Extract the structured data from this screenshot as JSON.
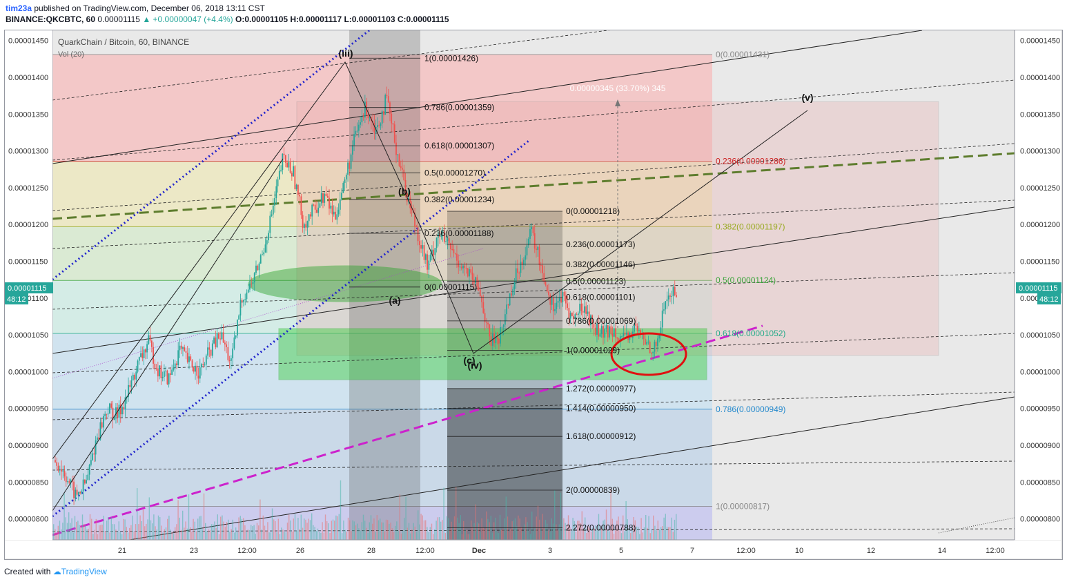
{
  "header": {
    "user": "tim23a",
    "published": " published on TradingView.com, December 06, 2018 13:11 CST",
    "symbol": "BINANCE:QKCBTC, 60",
    "price": "0.00001115",
    "change": "▲ +0.00000047 (+4.4%)",
    "ohlc": "O:0.00001105 H:0.00001117 L:0.00001103 C:0.00001115"
  },
  "legend": {
    "title": "QuarkChain / Bitcoin, 60, BINANCE",
    "volume": "Vol (20)"
  },
  "footer": {
    "prefix": "Created with",
    "brand": "TradingView"
  },
  "colors": {
    "up": "#26a69a",
    "down": "#ef5350",
    "bg": "#e9e9e9",
    "magenta": "#cc22cc",
    "blue": "#1f22cc",
    "olive": "#5e7d2e"
  },
  "chart_data": {
    "type": "candlestick",
    "interval": "60",
    "ylim": [
      7.75e-06,
      1.468e-05
    ],
    "y_ticks": [
      "0.00001450",
      "0.00001400",
      "0.00001350",
      "0.00001300",
      "0.00001250",
      "0.00001200",
      "0.00001150",
      "0.00001100",
      "0.00001050",
      "0.00001000",
      "0.00000950",
      "0.00000900",
      "0.00000850",
      "0.00000800"
    ],
    "x_ticks": [
      "21",
      "23",
      "12:00",
      "26",
      "28",
      "12:00",
      "Dec",
      "3",
      "5",
      "7",
      "12:00",
      "10",
      "12",
      "14",
      "12:00"
    ],
    "last_price": "0.00001115",
    "countdown": "48:12",
    "price_path": [
      8.8e-06,
      8.6e-06,
      8.3e-06,
      8.5e-06,
      9.1e-06,
      9.5e-06,
      9.4e-06,
      9.7e-06,
      1.01e-05,
      1.04e-05,
      1e-05,
      9.9e-06,
      1.03e-05,
      1.01e-05,
      1e-05,
      1.03e-05,
      1.05e-05,
      1.01e-05,
      1.1e-05,
      1.12e-05,
      1.16e-05,
      1.22e-05,
      1.29e-05,
      1.27e-05,
      1.2e-05,
      1.22e-05,
      1.24e-05,
      1.21e-05,
      1.26e-05,
      1.32e-05,
      1.36e-05,
      1.33e-05,
      1.37e-05,
      1.3e-05,
      1.24e-05,
      1.19e-05,
      1.14e-05,
      1.19e-05,
      1.17e-05,
      1.15e-05,
      1.13e-05,
      1.11e-05,
      1.04e-05,
      1.05e-05,
      1.11e-05,
      1.15e-05,
      1.19e-05,
      1.14e-05,
      1.09e-05,
      1.1e-05,
      1.07e-05,
      1.09e-05,
      1.06e-05,
      1.05e-05,
      1.06e-05,
      1.04e-05,
      1.06e-05,
      1.04e-05,
      1.03e-05,
      1.1e-05,
      1.11e-05
    ],
    "annotations": {
      "waves": [
        "(iii)",
        "(b)",
        "(a)",
        "(c)",
        "(iv)",
        "(v)"
      ],
      "measure": "0.00000345 (33.70%) 345",
      "fib_upper": [
        "1(0.00001426)",
        "0.786(0.00001359)",
        "0.618(0.00001307)",
        "0.5(0.00001270)",
        "0.382(0.00001234)",
        "0.236(0.00001188)",
        "0(0.00001115)"
      ],
      "fib_lower": [
        "0(0.00001218)",
        "0.236(0.00001173)",
        "0.382(0.00001146)",
        "0.5(0.00001123)",
        "0.618(0.00001101)",
        "0.786(0.00001069)",
        "1(0.00001029)",
        "1.272(0.00000977)",
        "1.414(0.00000950)",
        "1.618(0.00000912)",
        "2(0.00000839)",
        "2.272(0.00000788)"
      ],
      "fib_right": [
        "0(0.00001431)",
        "0.236(0.00001286)",
        "0.382(0.00001197)",
        "0.5(0.00001124)",
        "0.618(0.00001052)",
        "0.786(0.00000949)",
        "1(0.00000817)"
      ]
    }
  }
}
